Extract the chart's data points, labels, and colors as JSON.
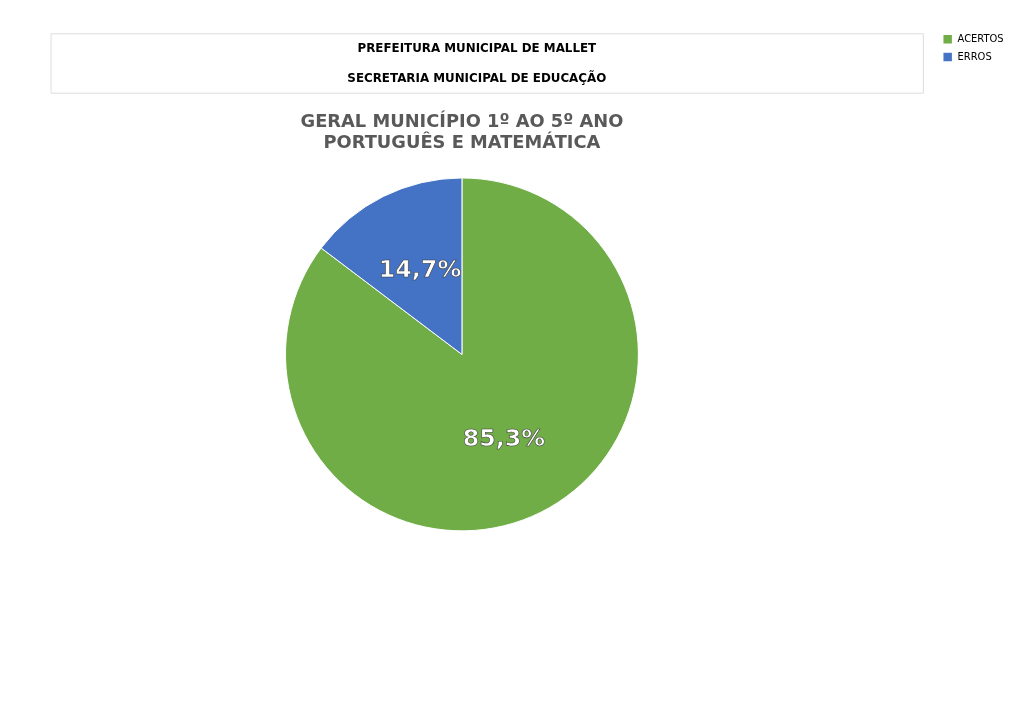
{
  "chart_data": {
    "type": "pie",
    "title": "GERAL MUNICÍPIO 1º AO 5º ANO",
    "subtitle": "PORTUGUÊS E MATEMÁTICA",
    "annotations": [
      "PREFEITURA MUNICIPAL DE MALLET",
      "SECRETARIA MUNICIPAL DE EDUCAÇÃO"
    ],
    "categories": [
      "ACERTOS",
      "ERROS"
    ],
    "values": [
      85.3,
      14.7
    ],
    "colors": [
      "#70ad47",
      "#4472c4"
    ],
    "value_labels": [
      "85,3%",
      "14,7%"
    ],
    "legend": "right"
  }
}
